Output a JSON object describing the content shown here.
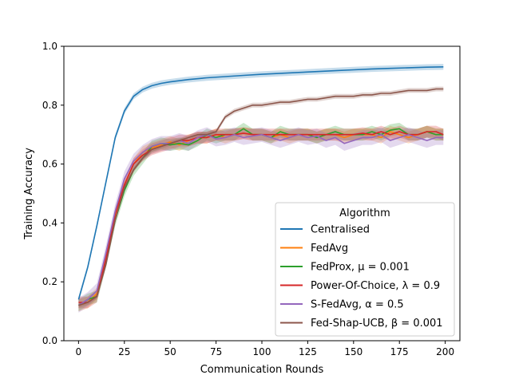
{
  "chart_data": {
    "type": "line",
    "title": "",
    "xlabel": "Communication Rounds",
    "ylabel": "Training Accuracy",
    "xlim": [
      -8,
      208
    ],
    "ylim": [
      0.0,
      1.0
    ],
    "xticks": [
      0,
      25,
      50,
      75,
      100,
      125,
      150,
      175,
      200
    ],
    "yticks": [
      0.0,
      0.2,
      0.4,
      0.6,
      0.8,
      1.0
    ],
    "xtick_labels": [
      "0",
      "25",
      "50",
      "75",
      "100",
      "125",
      "150",
      "175",
      "200"
    ],
    "ytick_labels": [
      "0.0",
      "0.2",
      "0.4",
      "0.6",
      "0.8",
      "1.0"
    ],
    "grid": false,
    "legend": {
      "title": "Algorithm",
      "placement": "lower-right"
    },
    "series": [
      {
        "name": "Centralised",
        "color": "#1f77b4",
        "x": [
          0,
          5,
          10,
          15,
          20,
          25,
          30,
          35,
          40,
          45,
          50,
          60,
          70,
          80,
          90,
          100,
          110,
          120,
          130,
          140,
          150,
          160,
          170,
          180,
          190,
          199
        ],
        "y": [
          0.14,
          0.25,
          0.39,
          0.54,
          0.69,
          0.78,
          0.83,
          0.853,
          0.866,
          0.874,
          0.879,
          0.887,
          0.893,
          0.897,
          0.901,
          0.905,
          0.908,
          0.911,
          0.914,
          0.917,
          0.92,
          0.923,
          0.925,
          0.927,
          0.929,
          0.93
        ],
        "band": 0.01
      },
      {
        "name": "FedAvg",
        "color": "#ff7f0e",
        "x": [
          0,
          5,
          10,
          15,
          20,
          25,
          30,
          35,
          40,
          45,
          50,
          55,
          60,
          65,
          70,
          75,
          80,
          85,
          90,
          95,
          100,
          105,
          110,
          115,
          120,
          125,
          130,
          135,
          140,
          145,
          150,
          155,
          160,
          165,
          170,
          175,
          180,
          185,
          190,
          195,
          199
        ],
        "y": [
          0.12,
          0.13,
          0.16,
          0.28,
          0.42,
          0.53,
          0.6,
          0.64,
          0.655,
          0.665,
          0.675,
          0.665,
          0.68,
          0.69,
          0.69,
          0.7,
          0.69,
          0.7,
          0.705,
          0.7,
          0.7,
          0.69,
          0.7,
          0.69,
          0.7,
          0.7,
          0.69,
          0.7,
          0.7,
          0.69,
          0.7,
          0.7,
          0.7,
          0.69,
          0.71,
          0.7,
          0.69,
          0.7,
          0.71,
          0.7,
          0.7
        ],
        "band": 0.02
      },
      {
        "name": "FedProx, μ = 0.001",
        "color": "#2ca02c",
        "x": [
          0,
          5,
          10,
          15,
          20,
          25,
          30,
          35,
          40,
          45,
          50,
          55,
          60,
          65,
          70,
          75,
          80,
          85,
          90,
          95,
          100,
          105,
          110,
          115,
          120,
          125,
          130,
          135,
          140,
          145,
          150,
          155,
          160,
          165,
          170,
          175,
          180,
          185,
          190,
          195,
          199
        ],
        "y": [
          0.12,
          0.14,
          0.15,
          0.27,
          0.41,
          0.51,
          0.58,
          0.62,
          0.66,
          0.67,
          0.665,
          0.67,
          0.665,
          0.68,
          0.7,
          0.69,
          0.7,
          0.7,
          0.72,
          0.7,
          0.7,
          0.69,
          0.71,
          0.7,
          0.7,
          0.7,
          0.69,
          0.7,
          0.71,
          0.7,
          0.7,
          0.7,
          0.71,
          0.7,
          0.715,
          0.72,
          0.7,
          0.7,
          0.71,
          0.7,
          0.7
        ],
        "band": 0.02
      },
      {
        "name": "Power-Of-Choice, λ = 0.9",
        "color": "#d62728",
        "x": [
          0,
          5,
          10,
          15,
          20,
          25,
          30,
          35,
          40,
          45,
          50,
          55,
          60,
          65,
          70,
          75,
          80,
          85,
          90,
          95,
          100,
          105,
          110,
          115,
          120,
          125,
          130,
          135,
          140,
          145,
          150,
          155,
          160,
          165,
          170,
          175,
          180,
          185,
          190,
          195,
          199
        ],
        "y": [
          0.13,
          0.13,
          0.15,
          0.28,
          0.43,
          0.53,
          0.6,
          0.63,
          0.65,
          0.66,
          0.67,
          0.68,
          0.68,
          0.69,
          0.69,
          0.7,
          0.7,
          0.7,
          0.705,
          0.7,
          0.7,
          0.7,
          0.7,
          0.7,
          0.7,
          0.7,
          0.7,
          0.7,
          0.7,
          0.7,
          0.7,
          0.705,
          0.7,
          0.71,
          0.7,
          0.71,
          0.7,
          0.7,
          0.71,
          0.71,
          0.7
        ],
        "band": 0.02
      },
      {
        "name": "S-FedAvg, α = 0.5",
        "color": "#9467bd",
        "x": [
          0,
          5,
          10,
          15,
          20,
          25,
          30,
          35,
          40,
          45,
          50,
          55,
          60,
          65,
          70,
          75,
          80,
          85,
          90,
          95,
          100,
          105,
          110,
          115,
          120,
          125,
          130,
          135,
          140,
          145,
          150,
          155,
          160,
          165,
          170,
          175,
          180,
          185,
          190,
          195,
          199
        ],
        "y": [
          0.12,
          0.14,
          0.17,
          0.3,
          0.44,
          0.55,
          0.61,
          0.64,
          0.66,
          0.67,
          0.67,
          0.68,
          0.67,
          0.69,
          0.7,
          0.685,
          0.69,
          0.7,
          0.69,
          0.695,
          0.7,
          0.69,
          0.68,
          0.69,
          0.7,
          0.69,
          0.695,
          0.68,
          0.69,
          0.67,
          0.68,
          0.69,
          0.69,
          0.7,
          0.68,
          0.69,
          0.7,
          0.69,
          0.68,
          0.69,
          0.69
        ],
        "band": 0.025
      },
      {
        "name": "Fed-Shap-UCB, β = 0.001",
        "color": "#8c564b",
        "x": [
          0,
          5,
          10,
          15,
          20,
          25,
          30,
          35,
          40,
          45,
          50,
          55,
          60,
          65,
          70,
          75,
          80,
          85,
          90,
          95,
          100,
          105,
          110,
          115,
          120,
          125,
          130,
          135,
          140,
          145,
          150,
          155,
          160,
          165,
          170,
          175,
          180,
          185,
          190,
          195,
          199
        ],
        "y": [
          0.12,
          0.13,
          0.15,
          0.26,
          0.41,
          0.52,
          0.58,
          0.62,
          0.65,
          0.66,
          0.67,
          0.68,
          0.69,
          0.7,
          0.7,
          0.71,
          0.76,
          0.78,
          0.79,
          0.8,
          0.8,
          0.805,
          0.81,
          0.81,
          0.815,
          0.82,
          0.82,
          0.825,
          0.83,
          0.83,
          0.83,
          0.835,
          0.835,
          0.84,
          0.84,
          0.845,
          0.85,
          0.85,
          0.85,
          0.855,
          0.855
        ],
        "band": 0.008
      }
    ]
  }
}
